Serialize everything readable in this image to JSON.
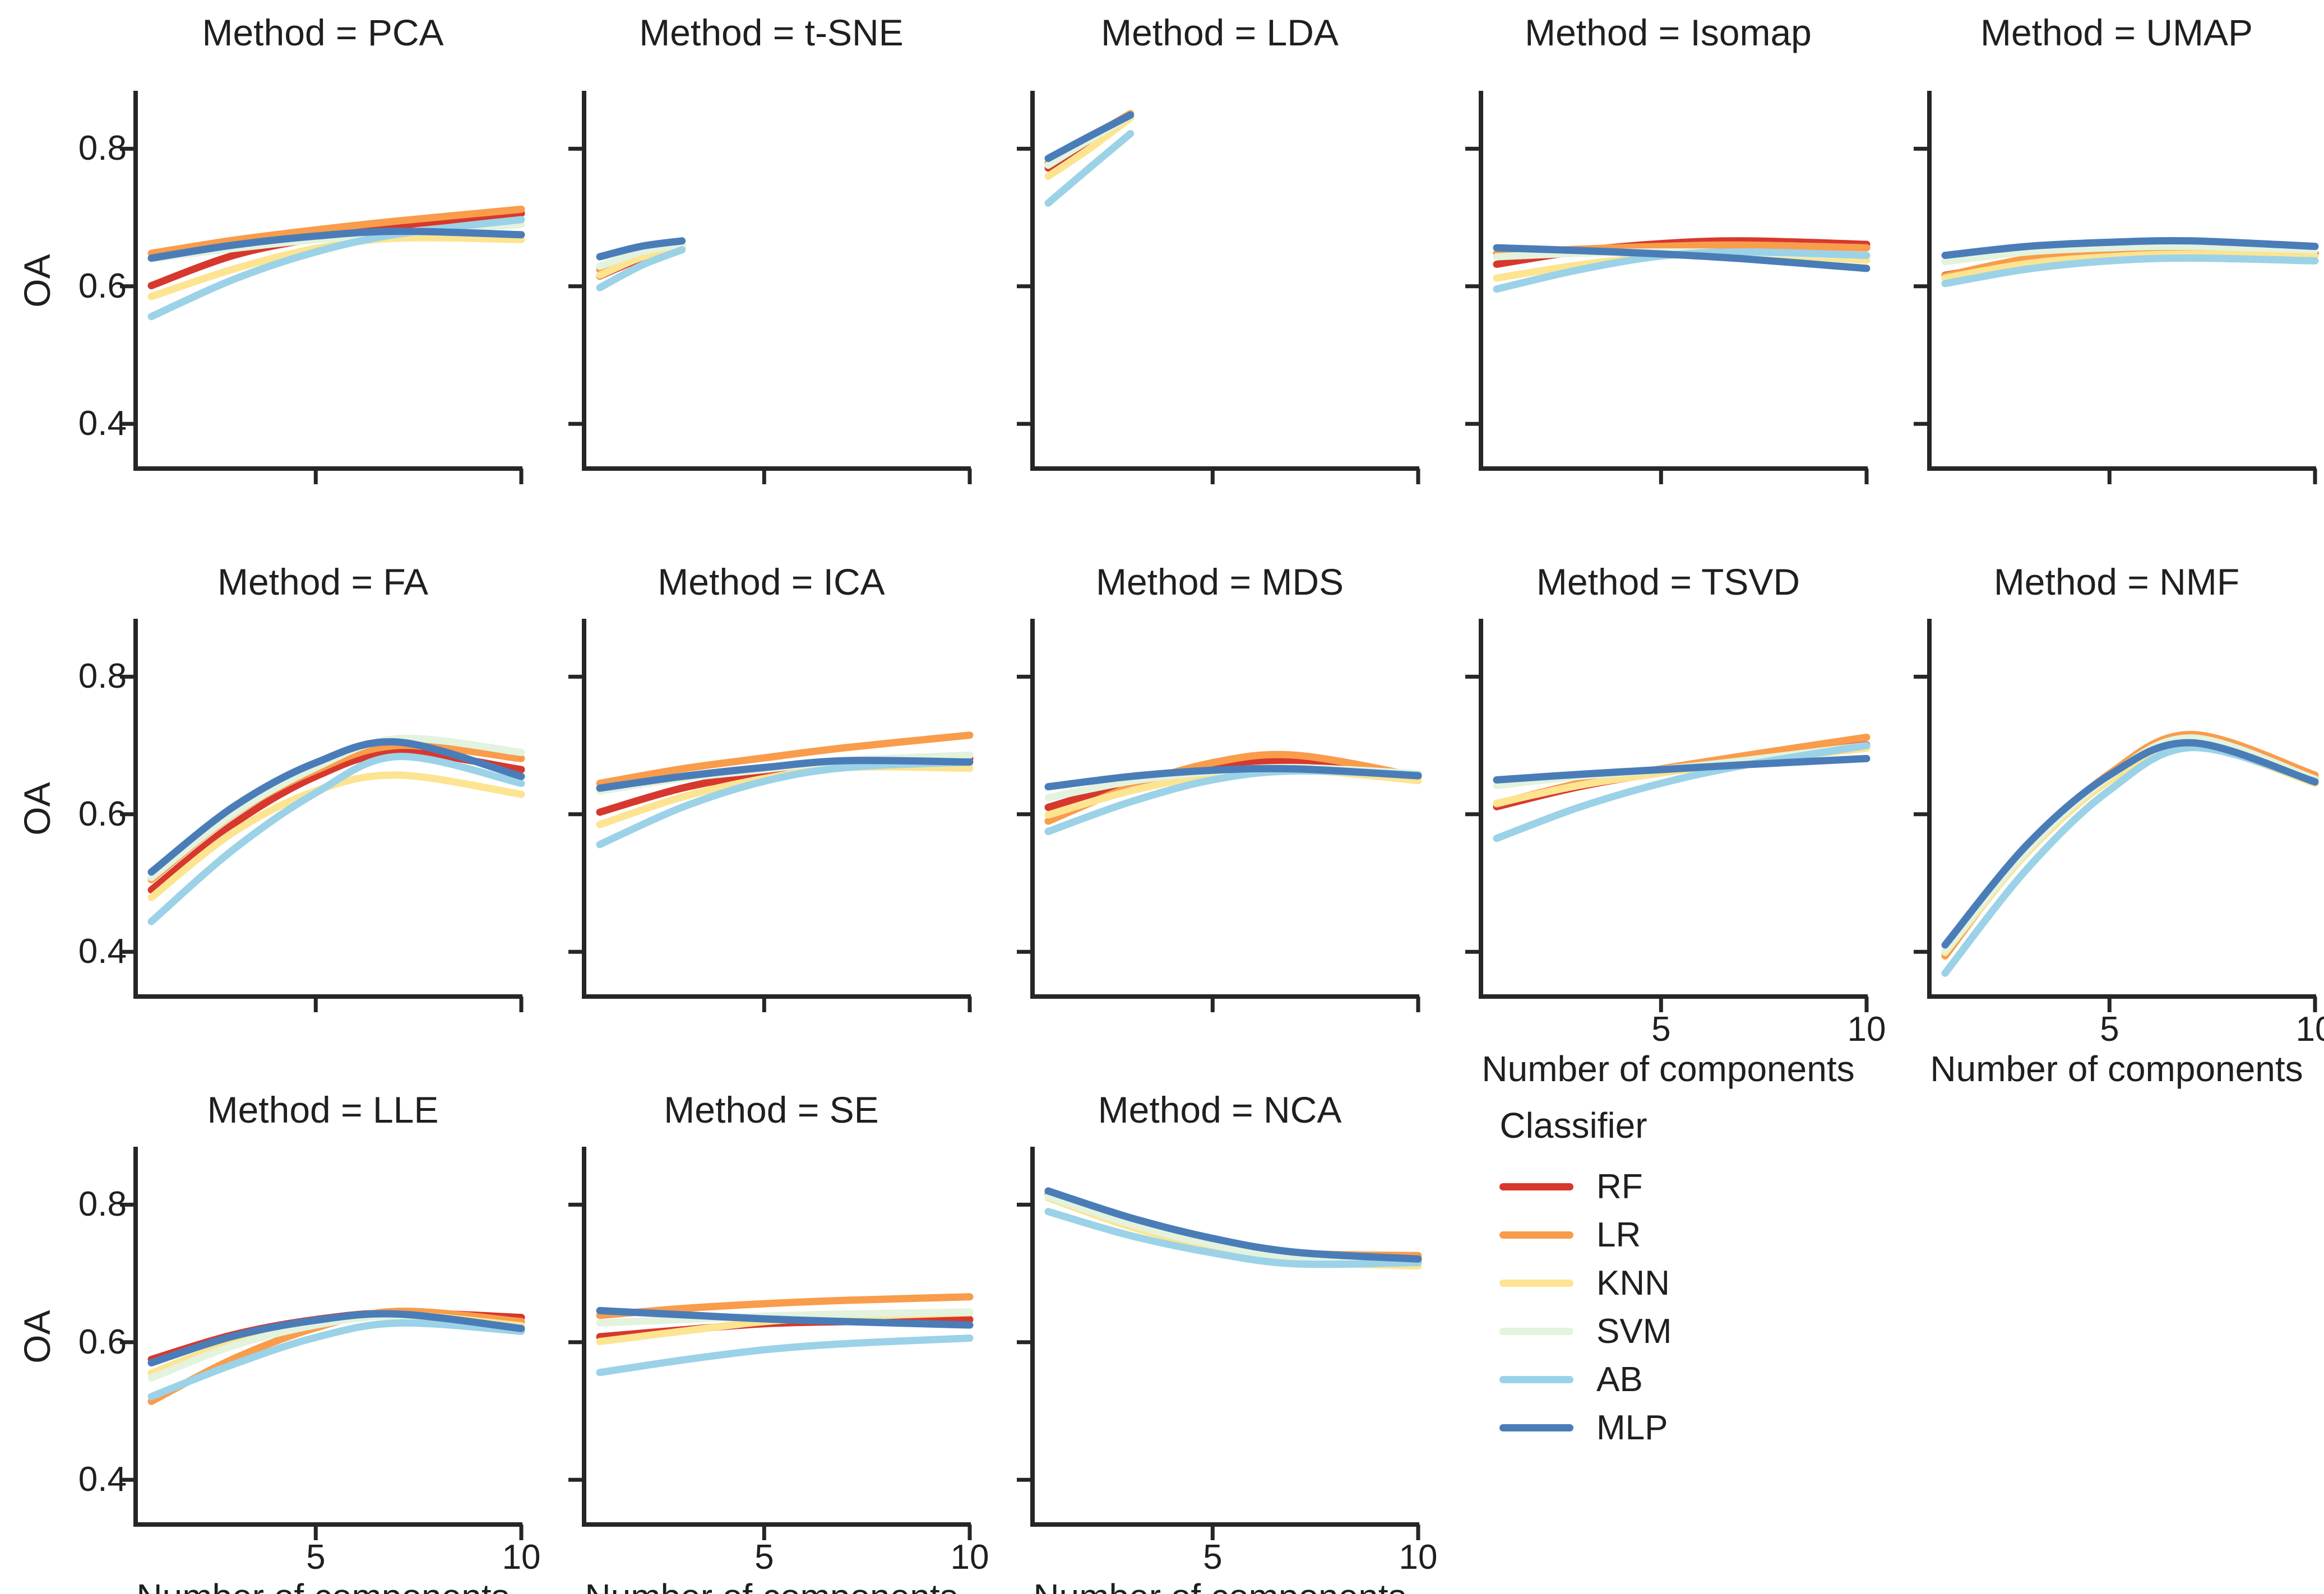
{
  "chart_data": {
    "type": "line",
    "layout": {
      "rows": 3,
      "cols": 5,
      "grid": "off",
      "facet_title_prefix": "Method = "
    },
    "xlabel": "Number of components",
    "ylabel": "OA",
    "x_range": [
      1,
      10
    ],
    "y_view_range": [
      0.335,
      0.881
    ],
    "x_ticks": [
      5,
      10
    ],
    "x_tick_labels": [
      "5",
      "10"
    ],
    "y_ticks": [
      0.8,
      0.6,
      0.4
    ],
    "y_tick_labels": [
      "0.8",
      "0.6",
      "0.4"
    ],
    "legend": {
      "title": "Classifier",
      "position": "lower-right-cell",
      "entries": [
        {
          "name": "RF",
          "color": "#d7382d"
        },
        {
          "name": "LR",
          "color": "#f99c4b"
        },
        {
          "name": "KNN",
          "color": "#fce491"
        },
        {
          "name": "SVM",
          "color": "#e3f3de"
        },
        {
          "name": "AB",
          "color": "#9bd2e7"
        },
        {
          "name": "MLP",
          "color": "#4a7db8"
        }
      ]
    },
    "facets": [
      {
        "method": "PCA",
        "title": "Method = PCA",
        "row": 0,
        "col": 0,
        "show_y_labels": true,
        "show_x_labels": false,
        "x": [
          1,
          3,
          5,
          7,
          10
        ],
        "series": [
          {
            "name": "RF",
            "y": [
              0.601,
              0.645,
              0.67,
              0.688,
              0.706
            ]
          },
          {
            "name": "LR",
            "y": [
              0.648,
              0.667,
              0.682,
              0.695,
              0.712
            ]
          },
          {
            "name": "KNN",
            "y": [
              0.585,
              0.625,
              0.655,
              0.67,
              0.668
            ]
          },
          {
            "name": "SVM",
            "y": [
              0.64,
              0.655,
              0.668,
              0.677,
              0.69
            ]
          },
          {
            "name": "AB",
            "y": [
              0.556,
              0.61,
              0.65,
              0.676,
              0.697
            ]
          },
          {
            "name": "MLP",
            "y": [
              0.641,
              0.66,
              0.673,
              0.68,
              0.675
            ]
          }
        ]
      },
      {
        "method": "t-SNE",
        "title": "Method = t-SNE",
        "row": 0,
        "col": 1,
        "show_y_labels": false,
        "show_x_labels": false,
        "x": [
          1,
          2,
          3
        ],
        "series": [
          {
            "name": "RF",
            "y": [
              0.615,
              0.64,
              0.656
            ]
          },
          {
            "name": "LR",
            "y": [
              0.624,
              0.648,
              0.66
            ]
          },
          {
            "name": "KNN",
            "y": [
              0.616,
              0.642,
              0.657
            ]
          },
          {
            "name": "SVM",
            "y": [
              0.629,
              0.65,
              0.661
            ]
          },
          {
            "name": "AB",
            "y": [
              0.598,
              0.63,
              0.653
            ]
          },
          {
            "name": "MLP",
            "y": [
              0.643,
              0.658,
              0.666
            ]
          }
        ]
      },
      {
        "method": "LDA",
        "title": "Method = LDA",
        "row": 0,
        "col": 2,
        "show_y_labels": false,
        "show_x_labels": false,
        "x": [
          1,
          2,
          3
        ],
        "series": [
          {
            "name": "RF",
            "y": [
              0.772,
              0.81,
              0.846
            ]
          },
          {
            "name": "LR",
            "y": [
              0.78,
              0.816,
              0.851
            ]
          },
          {
            "name": "KNN",
            "y": [
              0.76,
              0.8,
              0.845
            ]
          },
          {
            "name": "SVM",
            "y": [
              0.776,
              0.813,
              0.848
            ]
          },
          {
            "name": "AB",
            "y": [
              0.721,
              0.772,
              0.822
            ]
          },
          {
            "name": "MLP",
            "y": [
              0.786,
              0.818,
              0.849
            ]
          }
        ]
      },
      {
        "method": "Isomap",
        "title": "Method = Isomap",
        "row": 0,
        "col": 3,
        "show_y_labels": false,
        "show_x_labels": false,
        "x": [
          1,
          3,
          5,
          7,
          10
        ],
        "series": [
          {
            "name": "RF",
            "y": [
              0.632,
              0.651,
              0.662,
              0.666,
              0.661
            ]
          },
          {
            "name": "LR",
            "y": [
              0.648,
              0.654,
              0.658,
              0.66,
              0.656
            ]
          },
          {
            "name": "KNN",
            "y": [
              0.612,
              0.631,
              0.644,
              0.648,
              0.638
            ]
          },
          {
            "name": "SVM",
            "y": [
              0.643,
              0.648,
              0.65,
              0.649,
              0.645
            ]
          },
          {
            "name": "AB",
            "y": [
              0.596,
              0.624,
              0.644,
              0.65,
              0.645
            ]
          },
          {
            "name": "MLP",
            "y": [
              0.656,
              0.652,
              0.647,
              0.64,
              0.626
            ]
          }
        ]
      },
      {
        "method": "UMAP",
        "title": "Method = UMAP",
        "row": 0,
        "col": 4,
        "show_y_labels": false,
        "show_x_labels": false,
        "x": [
          1,
          3,
          5,
          7,
          10
        ],
        "series": [
          {
            "name": "RF",
            "y": [
              0.616,
              0.636,
              0.646,
              0.65,
              0.648
            ]
          },
          {
            "name": "LR",
            "y": [
              0.615,
              0.64,
              0.65,
              0.655,
              0.652
            ]
          },
          {
            "name": "KNN",
            "y": [
              0.612,
              0.633,
              0.643,
              0.647,
              0.644
            ]
          },
          {
            "name": "SVM",
            "y": [
              0.636,
              0.65,
              0.656,
              0.658,
              0.653
            ]
          },
          {
            "name": "AB",
            "y": [
              0.604,
              0.625,
              0.637,
              0.641,
              0.637
            ]
          },
          {
            "name": "MLP",
            "y": [
              0.645,
              0.658,
              0.664,
              0.666,
              0.658
            ]
          }
        ]
      },
      {
        "method": "FA",
        "title": "Method = FA",
        "row": 1,
        "col": 0,
        "show_y_labels": true,
        "show_x_labels": false,
        "x": [
          1,
          3,
          5,
          7,
          10
        ],
        "series": [
          {
            "name": "RF",
            "y": [
              0.49,
              0.586,
              0.655,
              0.69,
              0.665
            ]
          },
          {
            "name": "LR",
            "y": [
              0.505,
              0.6,
              0.664,
              0.7,
              0.681
            ]
          },
          {
            "name": "KNN",
            "y": [
              0.479,
              0.574,
              0.634,
              0.657,
              0.629
            ]
          },
          {
            "name": "SVM",
            "y": [
              0.508,
              0.601,
              0.668,
              0.71,
              0.69
            ]
          },
          {
            "name": "AB",
            "y": [
              0.444,
              0.549,
              0.631,
              0.684,
              0.645
            ]
          },
          {
            "name": "MLP",
            "y": [
              0.516,
              0.611,
              0.675,
              0.705,
              0.655
            ]
          }
        ]
      },
      {
        "method": "ICA",
        "title": "Method = ICA",
        "row": 1,
        "col": 1,
        "show_y_labels": false,
        "show_x_labels": false,
        "x": [
          1,
          3,
          5,
          7,
          10
        ],
        "series": [
          {
            "name": "RF",
            "y": [
              0.603,
              0.638,
              0.66,
              0.675,
              0.681
            ]
          },
          {
            "name": "LR",
            "y": [
              0.645,
              0.666,
              0.682,
              0.697,
              0.715
            ]
          },
          {
            "name": "KNN",
            "y": [
              0.585,
              0.625,
              0.652,
              0.668,
              0.667
            ]
          },
          {
            "name": "SVM",
            "y": [
              0.634,
              0.652,
              0.665,
              0.678,
              0.686
            ]
          },
          {
            "name": "AB",
            "y": [
              0.556,
              0.61,
              0.648,
              0.668,
              0.676
            ]
          },
          {
            "name": "MLP",
            "y": [
              0.638,
              0.655,
              0.668,
              0.678,
              0.676
            ]
          }
        ]
      },
      {
        "method": "MDS",
        "title": "Method = MDS",
        "row": 1,
        "col": 2,
        "show_y_labels": false,
        "show_x_labels": false,
        "x": [
          1,
          3,
          5,
          7,
          10
        ],
        "series": [
          {
            "name": "RF",
            "y": [
              0.61,
              0.645,
              0.668,
              0.678,
              0.656
            ]
          },
          {
            "name": "LR",
            "y": [
              0.59,
              0.64,
              0.675,
              0.686,
              0.655
            ]
          },
          {
            "name": "KNN",
            "y": [
              0.599,
              0.634,
              0.657,
              0.665,
              0.649
            ]
          },
          {
            "name": "SVM",
            "y": [
              0.624,
              0.648,
              0.662,
              0.668,
              0.659
            ]
          },
          {
            "name": "AB",
            "y": [
              0.575,
              0.618,
              0.65,
              0.663,
              0.657
            ]
          },
          {
            "name": "MLP",
            "y": [
              0.64,
              0.655,
              0.664,
              0.666,
              0.656
            ]
          }
        ]
      },
      {
        "method": "TSVD",
        "title": "Method = TSVD",
        "row": 1,
        "col": 3,
        "show_y_labels": false,
        "show_x_labels": true,
        "x": [
          1,
          3,
          5,
          7,
          10
        ],
        "series": [
          {
            "name": "RF",
            "y": [
              0.611,
              0.64,
              0.661,
              0.678,
              0.701
            ]
          },
          {
            "name": "LR",
            "y": [
              0.615,
              0.645,
              0.666,
              0.685,
              0.712
            ]
          },
          {
            "name": "KNN",
            "y": [
              0.616,
              0.642,
              0.66,
              0.676,
              0.696
            ]
          },
          {
            "name": "SVM",
            "y": [
              0.642,
              0.655,
              0.665,
              0.678,
              0.7
            ]
          },
          {
            "name": "AB",
            "y": [
              0.565,
              0.61,
              0.645,
              0.671,
              0.7
            ]
          },
          {
            "name": "MLP",
            "y": [
              0.65,
              0.658,
              0.665,
              0.672,
              0.681
            ]
          }
        ]
      },
      {
        "method": "NMF",
        "title": "Method = NMF",
        "row": 1,
        "col": 4,
        "show_y_labels": false,
        "show_x_labels": true,
        "x": [
          1,
          3,
          5,
          7,
          10
        ],
        "series": [
          {
            "name": "RF",
            "y": [
              0.398,
              0.545,
              0.653,
              0.706,
              0.652
            ]
          },
          {
            "name": "LR",
            "y": [
              0.394,
              0.549,
              0.659,
              0.716,
              0.657
            ]
          },
          {
            "name": "KNN",
            "y": [
              0.399,
              0.544,
              0.649,
              0.7,
              0.645
            ]
          },
          {
            "name": "SVM",
            "y": [
              0.401,
              0.548,
              0.655,
              0.711,
              0.651
            ]
          },
          {
            "name": "AB",
            "y": [
              0.369,
              0.521,
              0.635,
              0.697,
              0.648
            ]
          },
          {
            "name": "MLP",
            "y": [
              0.41,
              0.556,
              0.657,
              0.704,
              0.647
            ]
          }
        ]
      },
      {
        "method": "LLE",
        "title": "Method = LLE",
        "row": 2,
        "col": 0,
        "show_y_labels": true,
        "show_x_labels": true,
        "x": [
          1,
          3,
          5,
          7,
          10
        ],
        "series": [
          {
            "name": "RF",
            "y": [
              0.575,
              0.611,
              0.633,
              0.643,
              0.636
            ]
          },
          {
            "name": "LR",
            "y": [
              0.514,
              0.576,
              0.621,
              0.645,
              0.63
            ]
          },
          {
            "name": "KNN",
            "y": [
              0.555,
              0.6,
              0.628,
              0.64,
              0.624
            ]
          },
          {
            "name": "SVM",
            "y": [
              0.548,
              0.595,
              0.625,
              0.638,
              0.621
            ]
          },
          {
            "name": "AB",
            "y": [
              0.521,
              0.568,
              0.607,
              0.628,
              0.616
            ]
          },
          {
            "name": "MLP",
            "y": [
              0.57,
              0.609,
              0.632,
              0.641,
              0.62
            ]
          }
        ]
      },
      {
        "method": "SE",
        "title": "Method = SE",
        "row": 2,
        "col": 1,
        "show_y_labels": false,
        "show_x_labels": true,
        "x": [
          1,
          3,
          5,
          7,
          10
        ],
        "series": [
          {
            "name": "RF",
            "y": [
              0.608,
              0.618,
              0.627,
              0.63,
              0.633
            ]
          },
          {
            "name": "LR",
            "y": [
              0.639,
              0.649,
              0.656,
              0.661,
              0.666
            ]
          },
          {
            "name": "KNN",
            "y": [
              0.601,
              0.616,
              0.63,
              0.637,
              0.643
            ]
          },
          {
            "name": "SVM",
            "y": [
              0.628,
              0.633,
              0.638,
              0.641,
              0.644
            ]
          },
          {
            "name": "AB",
            "y": [
              0.556,
              0.574,
              0.589,
              0.598,
              0.606
            ]
          },
          {
            "name": "MLP",
            "y": [
              0.646,
              0.64,
              0.634,
              0.63,
              0.625
            ]
          }
        ]
      },
      {
        "method": "NCA",
        "title": "Method = NCA",
        "row": 2,
        "col": 2,
        "show_y_labels": false,
        "show_x_labels": true,
        "x": [
          1,
          3,
          5,
          7,
          10
        ],
        "series": [
          {
            "name": "RF",
            "y": [
              0.815,
              0.775,
              0.746,
              0.726,
              0.72
            ]
          },
          {
            "name": "LR",
            "y": [
              0.813,
              0.776,
              0.748,
              0.73,
              0.726
            ]
          },
          {
            "name": "KNN",
            "y": [
              0.81,
              0.768,
              0.738,
              0.718,
              0.711
            ]
          },
          {
            "name": "SVM",
            "y": [
              0.812,
              0.772,
              0.742,
              0.722,
              0.717
            ]
          },
          {
            "name": "AB",
            "y": [
              0.79,
              0.755,
              0.73,
              0.714,
              0.716
            ]
          },
          {
            "name": "MLP",
            "y": [
              0.82,
              0.781,
              0.751,
              0.731,
              0.721
            ]
          }
        ]
      }
    ],
    "style": {
      "background": "#ffffff",
      "spine_color": "#262626",
      "text_color": "#1f1f1f",
      "line_width": 13
    }
  }
}
